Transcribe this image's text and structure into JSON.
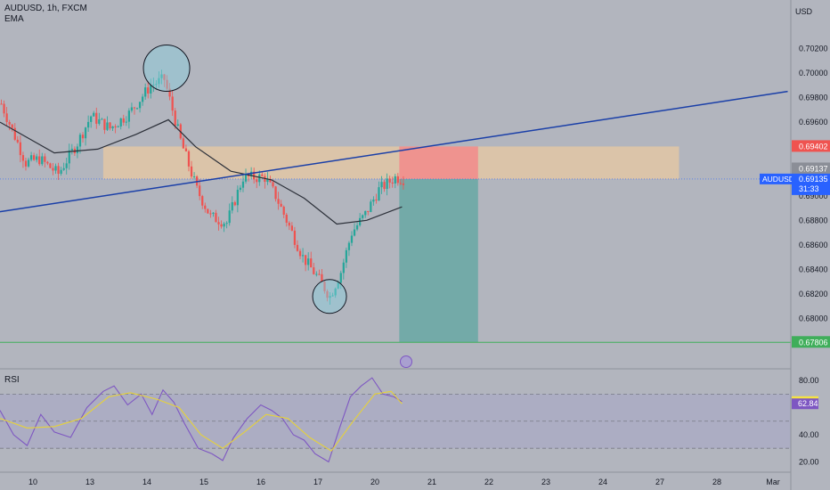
{
  "header": {
    "symbol_line": "AUDUSD, 1h, FXCM",
    "indicator": "EMA",
    "rsi_label": "RSI",
    "currency": "USD"
  },
  "colors": {
    "background": "#b2b5be",
    "up": "#26a69a",
    "down": "#ef5350",
    "ema": "#2b2f38",
    "trendline": "#1a3fa8",
    "zone": "#e8c9a2",
    "stop": "#f28b8b",
    "target": "#4aa399",
    "rsi_line": "#7e57c2",
    "rsi_ma": "#e6d23a",
    "circle": "#87d0e0"
  },
  "chart_data": {
    "type": "candlestick",
    "price_axis": {
      "ticks": [
        "0.70200",
        "0.70000",
        "0.69800",
        "0.69600",
        "0.69200",
        "0.69000",
        "0.68800",
        "0.68600",
        "0.68400",
        "0.68200",
        "0.68000"
      ],
      "range": [
        0.6775,
        0.7045
      ]
    },
    "x_ticks": [
      "10",
      "13",
      "14",
      "15",
      "16",
      "17",
      "20",
      "21",
      "22",
      "23",
      "24",
      "27",
      "28",
      "Mar"
    ],
    "labels": {
      "stop": "0.69402",
      "pair_last": "0.69137",
      "pair": "AUDUSD",
      "pair_price": "0.69135",
      "countdown": "31:33",
      "target": "0.67806"
    },
    "key_points": [
      {
        "bar": 0,
        "price": 0.6975
      },
      {
        "bar": 9,
        "price": 0.6927
      },
      {
        "bar": 14,
        "price": 0.693
      },
      {
        "bar": 21,
        "price": 0.6918
      },
      {
        "bar": 28,
        "price": 0.6943
      },
      {
        "bar": 33,
        "price": 0.6965
      },
      {
        "bar": 40,
        "price": 0.6955
      },
      {
        "bar": 47,
        "price": 0.6967
      },
      {
        "bar": 55,
        "price": 0.699
      },
      {
        "bar": 60,
        "price": 0.6995
      },
      {
        "bar": 66,
        "price": 0.6945
      },
      {
        "bar": 72,
        "price": 0.6905
      },
      {
        "bar": 77,
        "price": 0.6883
      },
      {
        "bar": 83,
        "price": 0.6878
      },
      {
        "bar": 89,
        "price": 0.6915
      },
      {
        "bar": 97,
        "price": 0.6915
      },
      {
        "bar": 101,
        "price": 0.69
      },
      {
        "bar": 105,
        "price": 0.688
      },
      {
        "bar": 111,
        "price": 0.685
      },
      {
        "bar": 116,
        "price": 0.6835
      },
      {
        "bar": 121,
        "price": 0.6818
      },
      {
        "bar": 125,
        "price": 0.6838
      },
      {
        "bar": 129,
        "price": 0.687
      },
      {
        "bar": 134,
        "price": 0.6885
      },
      {
        "bar": 139,
        "price": 0.6905
      },
      {
        "bar": 145,
        "price": 0.6915
      },
      {
        "bar": 148,
        "price": 0.69137
      }
    ],
    "ema_points": [
      {
        "bar": 0,
        "price": 0.696
      },
      {
        "bar": 20,
        "price": 0.6935
      },
      {
        "bar": 36,
        "price": 0.6938
      },
      {
        "bar": 50,
        "price": 0.695
      },
      {
        "bar": 62,
        "price": 0.6962
      },
      {
        "bar": 72,
        "price": 0.694
      },
      {
        "bar": 85,
        "price": 0.692
      },
      {
        "bar": 100,
        "price": 0.6913
      },
      {
        "bar": 112,
        "price": 0.6898
      },
      {
        "bar": 124,
        "price": 0.6877
      },
      {
        "bar": 135,
        "price": 0.688
      },
      {
        "bar": 148,
        "price": 0.6891
      }
    ],
    "trendline": {
      "from": {
        "bar": 0,
        "price": 0.6887
      },
      "to": {
        "bar": 290,
        "price": 0.6985
      }
    },
    "zone": {
      "top": 0.69402,
      "bottom": 0.69137,
      "from_bar": 38,
      "to_bar": 250
    },
    "position": {
      "entry": 0.69137,
      "stop": 0.69402,
      "target": 0.67806,
      "from_bar": 147,
      "to_bar": 176
    },
    "circles": [
      {
        "bar": 61,
        "price": 0.7004
      },
      {
        "bar": 121,
        "price": 0.6818
      }
    ],
    "rsi": {
      "ticks": [
        "80.00",
        "40.00",
        "20.00"
      ],
      "levels": [
        70,
        50,
        30
      ],
      "range": [
        15,
        86
      ],
      "value_rsi": "64.45",
      "value_ma": "62.84",
      "rsi_points": [
        {
          "bar": 0,
          "v": 58
        },
        {
          "bar": 5,
          "v": 40
        },
        {
          "bar": 10,
          "v": 32
        },
        {
          "bar": 15,
          "v": 55
        },
        {
          "bar": 20,
          "v": 42
        },
        {
          "bar": 26,
          "v": 38
        },
        {
          "bar": 32,
          "v": 60
        },
        {
          "bar": 38,
          "v": 72
        },
        {
          "bar": 42,
          "v": 76
        },
        {
          "bar": 47,
          "v": 62
        },
        {
          "bar": 52,
          "v": 70
        },
        {
          "bar": 56,
          "v": 55
        },
        {
          "bar": 60,
          "v": 73
        },
        {
          "bar": 64,
          "v": 64
        },
        {
          "bar": 68,
          "v": 48
        },
        {
          "bar": 73,
          "v": 30
        },
        {
          "bar": 78,
          "v": 26
        },
        {
          "bar": 82,
          "v": 21
        },
        {
          "bar": 86,
          "v": 38
        },
        {
          "bar": 91,
          "v": 52
        },
        {
          "bar": 96,
          "v": 62
        },
        {
          "bar": 100,
          "v": 58
        },
        {
          "bar": 104,
          "v": 52
        },
        {
          "bar": 108,
          "v": 40
        },
        {
          "bar": 112,
          "v": 36
        },
        {
          "bar": 116,
          "v": 26
        },
        {
          "bar": 121,
          "v": 20
        },
        {
          "bar": 125,
          "v": 45
        },
        {
          "bar": 129,
          "v": 68
        },
        {
          "bar": 133,
          "v": 76
        },
        {
          "bar": 137,
          "v": 82
        },
        {
          "bar": 141,
          "v": 70
        },
        {
          "bar": 145,
          "v": 68
        },
        {
          "bar": 148,
          "v": 64.45
        }
      ],
      "ma_points": [
        {
          "bar": 0,
          "v": 52
        },
        {
          "bar": 10,
          "v": 45
        },
        {
          "bar": 20,
          "v": 46
        },
        {
          "bar": 30,
          "v": 52
        },
        {
          "bar": 40,
          "v": 68
        },
        {
          "bar": 48,
          "v": 71
        },
        {
          "bar": 58,
          "v": 66
        },
        {
          "bar": 66,
          "v": 60
        },
        {
          "bar": 74,
          "v": 40
        },
        {
          "bar": 82,
          "v": 30
        },
        {
          "bar": 90,
          "v": 42
        },
        {
          "bar": 98,
          "v": 55
        },
        {
          "bar": 106,
          "v": 52
        },
        {
          "bar": 114,
          "v": 38
        },
        {
          "bar": 122,
          "v": 28
        },
        {
          "bar": 130,
          "v": 50
        },
        {
          "bar": 138,
          "v": 70
        },
        {
          "bar": 144,
          "v": 72
        },
        {
          "bar": 148,
          "v": 62.84
        }
      ]
    }
  }
}
